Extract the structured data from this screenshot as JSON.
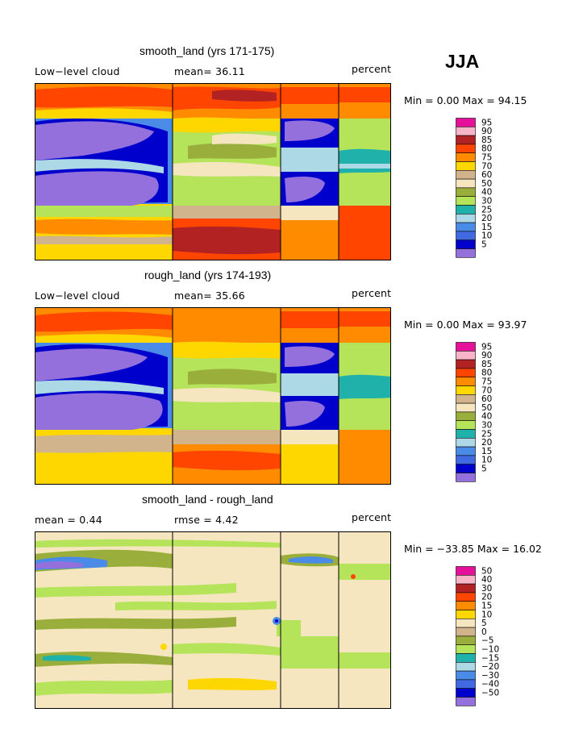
{
  "season": "JJA",
  "panels": [
    {
      "title": "smooth_land (yrs 171-175)",
      "left_label": "Low−level cloud",
      "center_label": "mean=   36.11",
      "right_label": "percent",
      "minmax": "Min =   0.00 Max =  94.15",
      "levels": [
        "95",
        "90",
        "85",
        "80",
        "75",
        "70",
        "60",
        "50",
        "40",
        "30",
        "25",
        "20",
        "15",
        "10",
        "5"
      ],
      "colors": [
        "#e6119a",
        "#f8b4c8",
        "#b22222",
        "#ff4500",
        "#ff8c00",
        "#ffd700",
        "#d2b48c",
        "#f5e6c0",
        "#9aaf3b",
        "#b5e35a",
        "#20b2aa",
        "#add8e6",
        "#4a8be8",
        "#4169e1",
        "#0000cd",
        "#9370db"
      ]
    },
    {
      "title": "rough_land (yrs 174-193)",
      "left_label": "Low−level cloud",
      "center_label": "mean=   35.66",
      "right_label": "percent",
      "minmax": "Min =   0.00 Max =  93.97",
      "levels": [
        "95",
        "90",
        "85",
        "80",
        "75",
        "70",
        "60",
        "50",
        "40",
        "30",
        "25",
        "20",
        "15",
        "10",
        "5"
      ],
      "colors": [
        "#e6119a",
        "#f8b4c8",
        "#b22222",
        "#ff4500",
        "#ff8c00",
        "#ffd700",
        "#d2b48c",
        "#f5e6c0",
        "#9aaf3b",
        "#b5e35a",
        "#20b2aa",
        "#add8e6",
        "#4a8be8",
        "#4169e1",
        "#0000cd",
        "#9370db"
      ]
    },
    {
      "title": "smooth_land - rough_land",
      "left_label": "mean =    0.44",
      "center_label": "rmse =    4.42",
      "right_label": "percent",
      "minmax": "Min = −33.85 Max =  16.02",
      "levels": [
        "50",
        "40",
        "30",
        "20",
        "15",
        "10",
        "5",
        "0",
        "−5",
        "−10",
        "−15",
        "−20",
        "−30",
        "−40",
        "−50"
      ],
      "colors": [
        "#e6119a",
        "#f8b4c8",
        "#b22222",
        "#ff4500",
        "#ff8c00",
        "#ffd700",
        "#f5e6c0",
        "#d2b48c",
        "#9aaf3b",
        "#b5e35a",
        "#20b2aa",
        "#add8e6",
        "#4a8be8",
        "#4169e1",
        "#0000cd",
        "#9370db"
      ]
    }
  ],
  "chart_data": [
    {
      "type": "heatmap",
      "title": "smooth_land (yrs 171-175)",
      "variable": "Low−level cloud",
      "units": "percent",
      "mean": 36.11,
      "min": 0.0,
      "max": 94.15,
      "season": "JJA",
      "levels": [
        5,
        10,
        15,
        20,
        25,
        30,
        40,
        50,
        60,
        70,
        75,
        80,
        85,
        90,
        95
      ]
    },
    {
      "type": "heatmap",
      "title": "rough_land (yrs 174-193)",
      "variable": "Low−level cloud",
      "units": "percent",
      "mean": 35.66,
      "min": 0.0,
      "max": 93.97,
      "season": "JJA",
      "levels": [
        5,
        10,
        15,
        20,
        25,
        30,
        40,
        50,
        60,
        70,
        75,
        80,
        85,
        90,
        95
      ]
    },
    {
      "type": "heatmap",
      "title": "smooth_land - rough_land",
      "units": "percent",
      "mean": 0.44,
      "rmse": 4.42,
      "min": -33.85,
      "max": 16.02,
      "season": "JJA",
      "levels": [
        -50,
        -40,
        -30,
        -20,
        -15,
        -10,
        -5,
        0,
        5,
        10,
        15,
        20,
        30,
        40,
        50
      ]
    }
  ]
}
